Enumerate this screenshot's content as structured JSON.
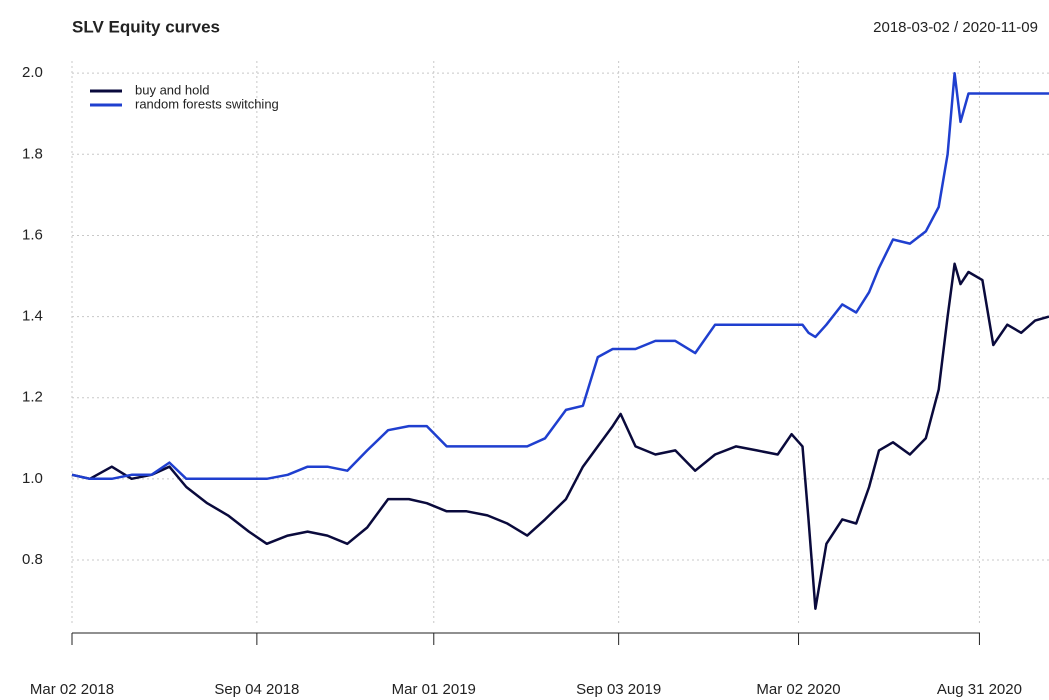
{
  "chart_data": {
    "type": "line",
    "title": "SLV Equity curves",
    "subtitle": "2018-03-02 / 2020-11-09",
    "x": [
      "2018-03-02",
      "2018-03-20",
      "2018-04-11",
      "2018-05-01",
      "2018-05-21",
      "2018-06-08",
      "2018-06-25",
      "2018-07-16",
      "2018-08-06",
      "2018-08-27",
      "2018-09-14",
      "2018-10-05",
      "2018-10-25",
      "2018-11-14",
      "2018-12-04",
      "2018-12-24",
      "2019-01-14",
      "2019-02-04",
      "2019-02-22",
      "2019-03-14",
      "2019-04-03",
      "2019-04-24",
      "2019-05-14",
      "2019-06-03",
      "2019-06-21",
      "2019-07-12",
      "2019-07-29",
      "2019-08-13",
      "2019-08-28",
      "2019-09-05",
      "2019-09-20",
      "2019-10-10",
      "2019-10-30",
      "2019-11-19",
      "2019-12-09",
      "2019-12-30",
      "2020-01-20",
      "2020-02-10",
      "2020-02-24",
      "2020-03-06",
      "2020-03-12",
      "2020-03-19",
      "2020-03-30",
      "2020-04-15",
      "2020-04-29",
      "2020-05-12",
      "2020-05-22",
      "2020-06-05",
      "2020-06-22",
      "2020-07-08",
      "2020-07-21",
      "2020-07-30",
      "2020-08-06",
      "2020-08-12",
      "2020-08-20",
      "2020-09-03",
      "2020-09-14",
      "2020-09-28",
      "2020-10-12",
      "2020-10-26",
      "2020-11-09"
    ],
    "series": [
      {
        "name": "buy and hold",
        "color": "#0a0a3c",
        "values": [
          1.01,
          1.0,
          1.03,
          1.0,
          1.01,
          1.03,
          0.98,
          0.94,
          0.91,
          0.87,
          0.84,
          0.86,
          0.87,
          0.86,
          0.84,
          0.88,
          0.95,
          0.95,
          0.94,
          0.92,
          0.92,
          0.91,
          0.89,
          0.86,
          0.9,
          0.95,
          1.03,
          1.08,
          1.13,
          1.16,
          1.08,
          1.06,
          1.07,
          1.02,
          1.06,
          1.08,
          1.07,
          1.06,
          1.11,
          1.08,
          0.9,
          0.68,
          0.84,
          0.9,
          0.89,
          0.98,
          1.07,
          1.09,
          1.06,
          1.1,
          1.22,
          1.4,
          1.53,
          1.48,
          1.51,
          1.49,
          1.33,
          1.38,
          1.36,
          1.39,
          1.4
        ]
      },
      {
        "name": "random forests switching",
        "color": "#1f3fcf",
        "values": [
          1.01,
          1.0,
          1.0,
          1.01,
          1.01,
          1.04,
          1.0,
          1.0,
          1.0,
          1.0,
          1.0,
          1.01,
          1.03,
          1.03,
          1.02,
          1.07,
          1.12,
          1.13,
          1.13,
          1.08,
          1.08,
          1.08,
          1.08,
          1.08,
          1.1,
          1.17,
          1.18,
          1.3,
          1.32,
          1.32,
          1.32,
          1.34,
          1.34,
          1.31,
          1.38,
          1.38,
          1.38,
          1.38,
          1.38,
          1.38,
          1.36,
          1.35,
          1.38,
          1.43,
          1.41,
          1.46,
          1.52,
          1.59,
          1.58,
          1.61,
          1.67,
          1.8,
          2.0,
          1.88,
          1.95,
          1.95,
          1.95,
          1.95,
          1.95,
          1.95,
          1.95
        ]
      }
    ],
    "xlim": [
      "2018-03-02",
      "2020-11-09"
    ],
    "xticks": [
      {
        "value": "2018-03-02",
        "label": "Mar 02 2018"
      },
      {
        "value": "2018-09-04",
        "label": "Sep 04 2018"
      },
      {
        "value": "2019-03-01",
        "label": "Mar 01 2019"
      },
      {
        "value": "2019-09-03",
        "label": "Sep 03 2019"
      },
      {
        "value": "2020-03-02",
        "label": "Mar 02 2020"
      },
      {
        "value": "2020-08-31",
        "label": "Aug 31 2020"
      }
    ],
    "ylim": [
      0.62,
      2.03
    ],
    "yticks": [
      {
        "value": 0.8,
        "label": "0.8"
      },
      {
        "value": 1,
        "label": "1.0"
      },
      {
        "value": 1.2,
        "label": "1.2"
      },
      {
        "value": 1.4,
        "label": "1.4"
      },
      {
        "value": 1.6,
        "label": "1.6"
      },
      {
        "value": 1.8,
        "label": "1.8"
      },
      {
        "value": 2,
        "label": "2.0"
      }
    ],
    "grid": true,
    "legend": "top-left"
  }
}
